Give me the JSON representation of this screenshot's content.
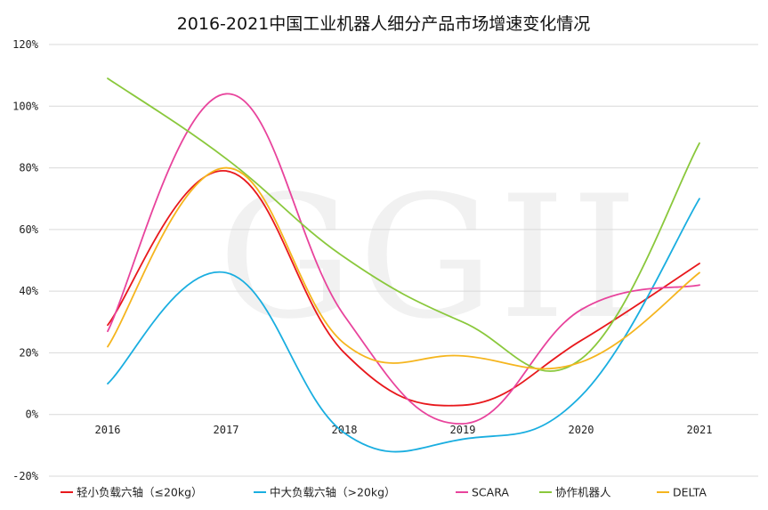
{
  "chart_data": {
    "type": "line",
    "title": "2016-2021中国工业机器人细分产品市场增速变化情况",
    "watermark": "GGII",
    "categories": [
      "2016",
      "2017",
      "2018",
      "2019",
      "2020",
      "2021"
    ],
    "ylim": [
      -20,
      120
    ],
    "yticks": [
      {
        "value": -20,
        "label": "-20%"
      },
      {
        "value": 0,
        "label": "0%"
      },
      {
        "value": 20,
        "label": "20%"
      },
      {
        "value": 40,
        "label": "40%"
      },
      {
        "value": 60,
        "label": "60%"
      },
      {
        "value": 80,
        "label": "80%"
      },
      {
        "value": 100,
        "label": "100%"
      },
      {
        "value": 120,
        "label": "120%"
      }
    ],
    "grid": true,
    "legend_position": "bottom",
    "series": [
      {
        "name": "轻小负载六轴（≤20kg）",
        "color": "#e8181c",
        "values": [
          29,
          79,
          20,
          3,
          24,
          49
        ]
      },
      {
        "name": "中大负载六轴（>20kg）",
        "color": "#1aaee0",
        "values": [
          10,
          46,
          -6,
          -8,
          6,
          70
        ]
      },
      {
        "name": "SCARA",
        "color": "#e8439c",
        "values": [
          27,
          104,
          32,
          -3,
          34,
          42
        ]
      },
      {
        "name": "协作机器人",
        "color": "#8ac83c",
        "values": [
          109,
          83,
          51,
          30,
          18,
          88
        ]
      },
      {
        "name": "DELTA",
        "color": "#f5b51e",
        "values": [
          22,
          80,
          23,
          19,
          17,
          46
        ]
      }
    ]
  }
}
